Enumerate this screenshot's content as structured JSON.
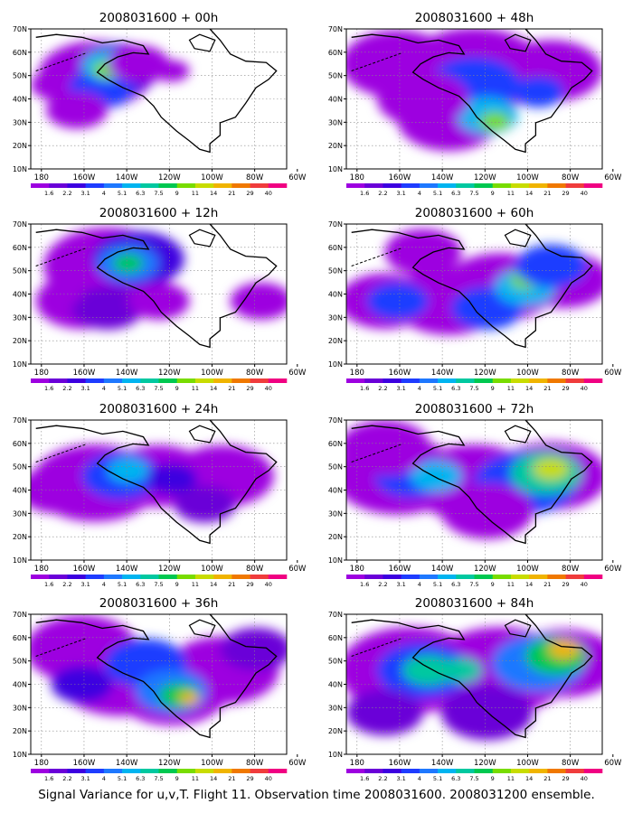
{
  "caption": "Signal Variance for u,v,T. Flight 11. Observation time 2008031600. 2008031200 ensemble.",
  "lat_labels": [
    "70N",
    "60N",
    "50N",
    "40N",
    "30N",
    "20N",
    "10N"
  ],
  "lon_labels": [
    "180",
    "160W",
    "140W",
    "120W",
    "100W",
    "80W",
    "60W"
  ],
  "colorbar": {
    "labels": [
      "1.6",
      "2.2",
      "3.1",
      "4",
      "5.1",
      "6.3",
      "7.5",
      "9",
      "11",
      "14",
      "21",
      "29",
      "40"
    ],
    "colors": [
      "#9d00e0",
      "#6a00d8",
      "#3c00e0",
      "#1e3cff",
      "#1e78ff",
      "#00b4f0",
      "#00c8a0",
      "#00c850",
      "#78dc00",
      "#c8dc00",
      "#f0b400",
      "#f07800",
      "#f03c3c",
      "#f00082"
    ]
  },
  "panels": [
    {
      "title": "2008031600 + 00h"
    },
    {
      "title": "2008031600 + 48h"
    },
    {
      "title": "2008031600 + 12h"
    },
    {
      "title": "2008031600 + 60h"
    },
    {
      "title": "2008031600 + 24h"
    },
    {
      "title": "2008031600 + 72h"
    },
    {
      "title": "2008031600 + 36h"
    },
    {
      "title": "2008031600 + 84h"
    }
  ]
}
